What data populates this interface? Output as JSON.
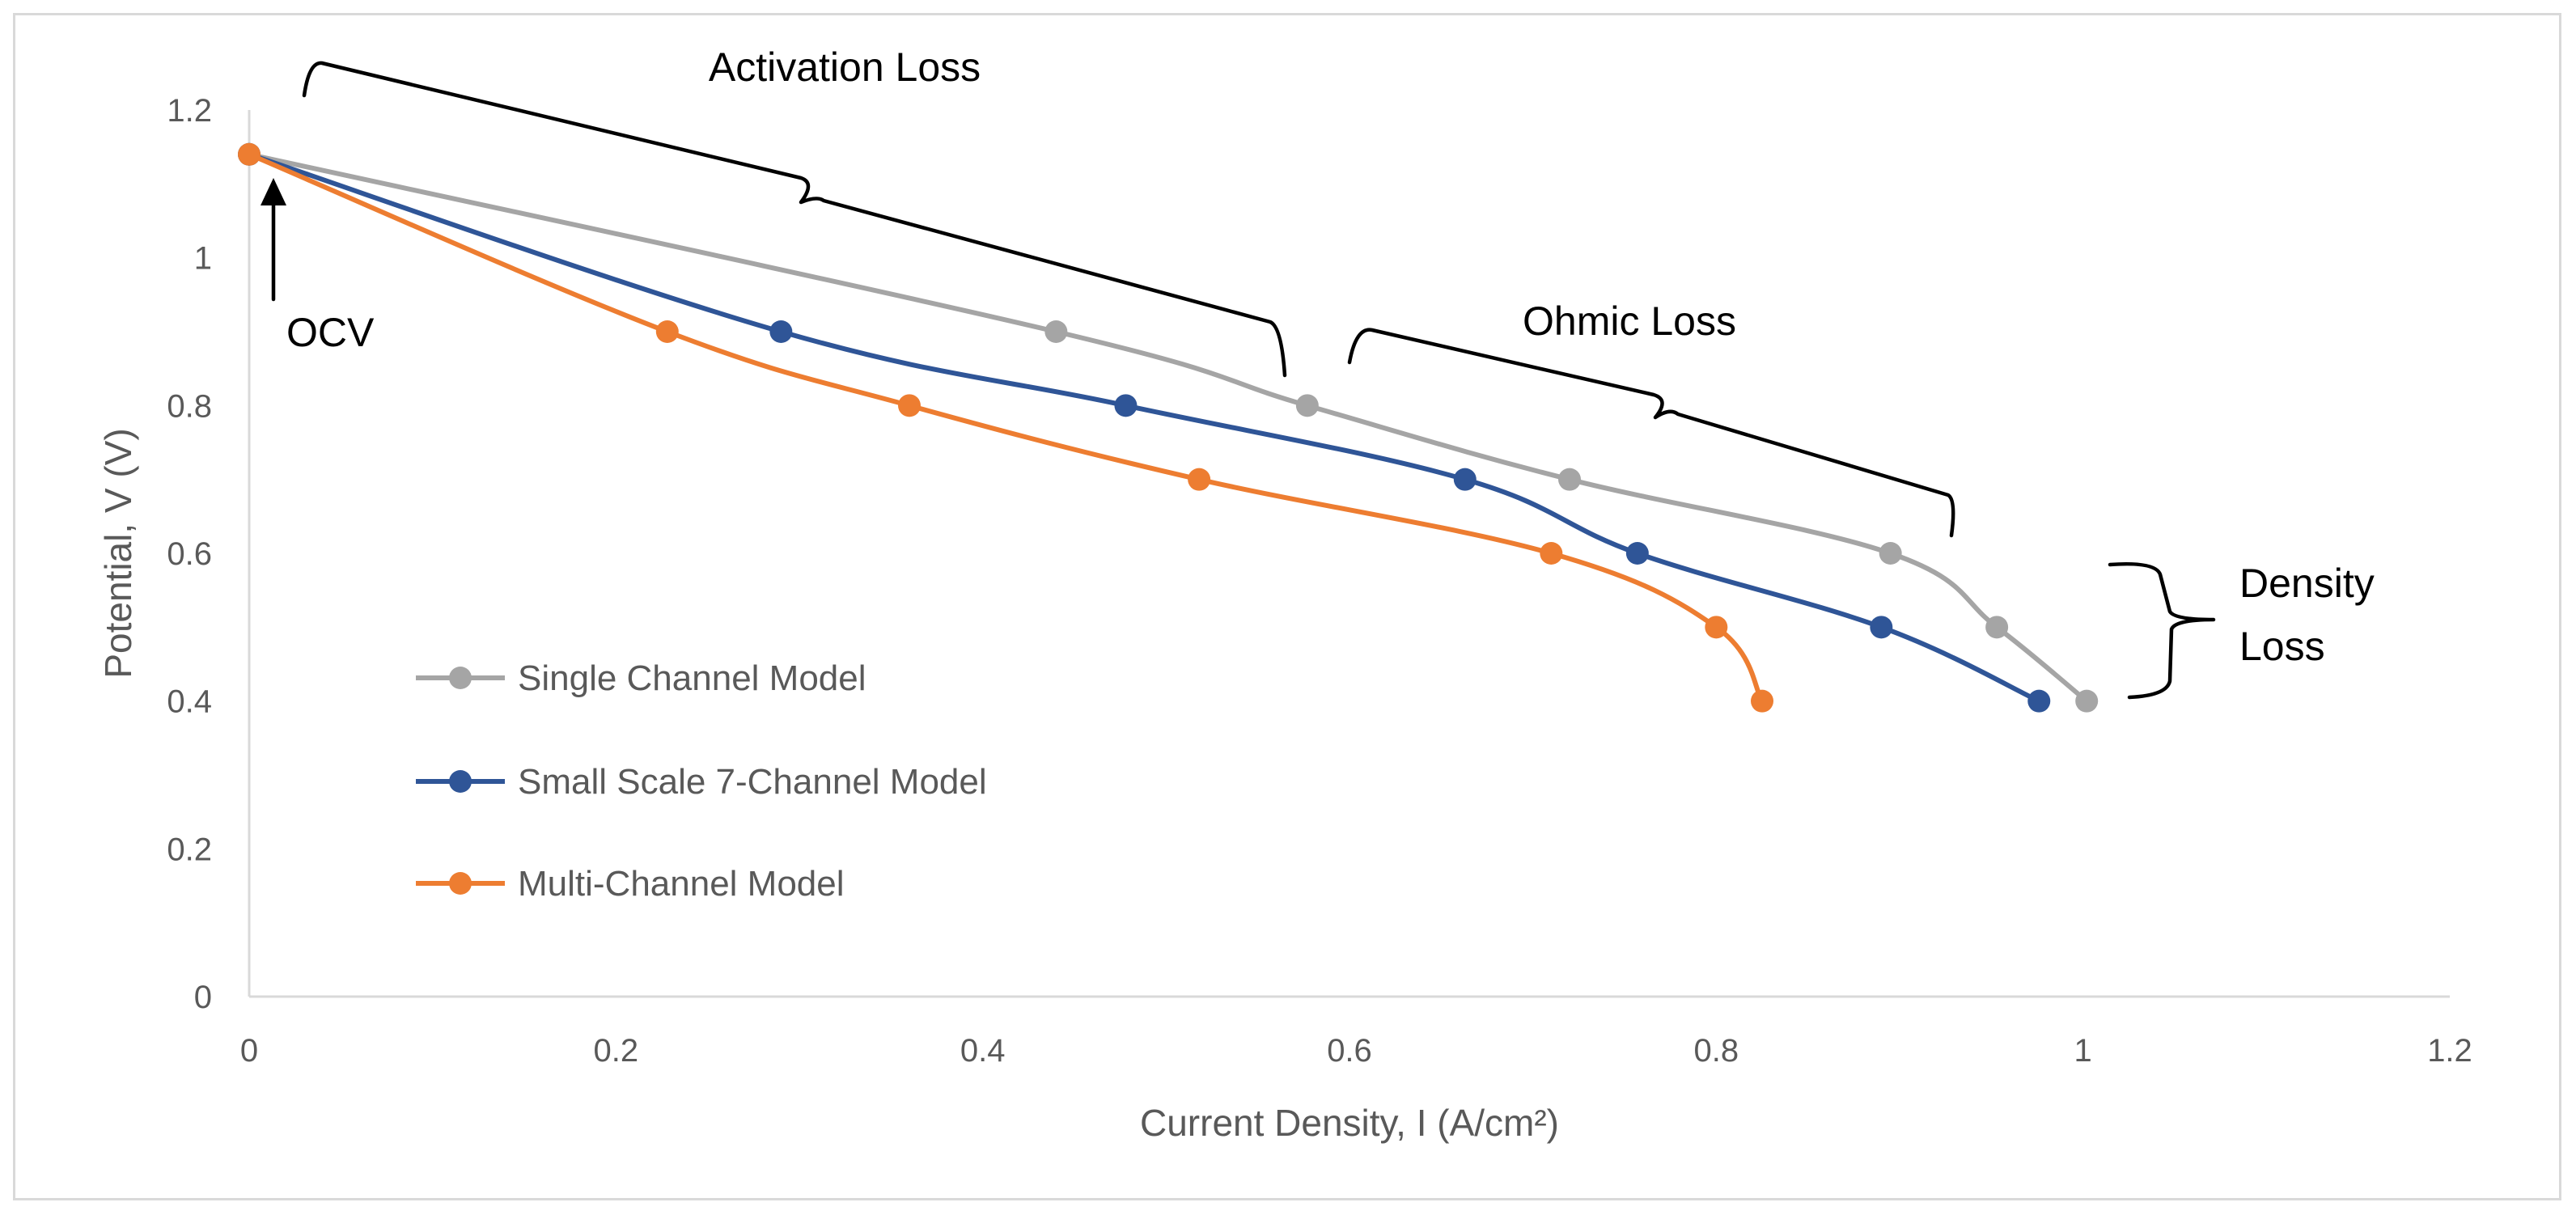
{
  "chart_data": {
    "type": "line",
    "title": "",
    "xlabel": "Current Density, I (A/cm²)",
    "ylabel": "Potential, V (V)",
    "xlim": [
      0,
      1.2
    ],
    "ylim": [
      0,
      1.2
    ],
    "xticks": [
      0,
      0.2,
      0.4,
      0.6,
      0.8,
      1,
      1.2
    ],
    "yticks": [
      0,
      0.2,
      0.4,
      0.6,
      0.8,
      1,
      1.2
    ],
    "xtick_labels": [
      "0",
      "0.2",
      "0.4",
      "0.6",
      "0.8",
      "1",
      "1.2"
    ],
    "ytick_labels": [
      "0",
      "0.2",
      "0.4",
      "0.6",
      "0.8",
      "1",
      "1.2"
    ],
    "grid": false,
    "legend_position": "left-center",
    "series": [
      {
        "name": "Single Channel Model",
        "color": "#a5a5a5",
        "x": [
          0,
          0.44,
          0.577,
          0.72,
          0.895,
          0.953,
          1.002
        ],
        "y": [
          1.14,
          0.9,
          0.8,
          0.7,
          0.6,
          0.5,
          0.4
        ]
      },
      {
        "name": "Small Scale 7-Channel Model",
        "color": "#2f5597",
        "x": [
          0,
          0.29,
          0.478,
          0.663,
          0.757,
          0.89,
          0.976
        ],
        "y": [
          1.14,
          0.9,
          0.8,
          0.7,
          0.6,
          0.5,
          0.4
        ]
      },
      {
        "name": "Multi-Channel Model",
        "color": "#ed7d31",
        "x": [
          0,
          0.228,
          0.36,
          0.518,
          0.71,
          0.8,
          0.825
        ],
        "y": [
          1.14,
          0.9,
          0.8,
          0.7,
          0.6,
          0.5,
          0.4
        ]
      }
    ],
    "annotations": {
      "activation": "Activation Loss",
      "ohmic": "Ohmic Loss",
      "ocv": "OCV",
      "density_line1": "Density",
      "density_line2": "Loss"
    }
  }
}
